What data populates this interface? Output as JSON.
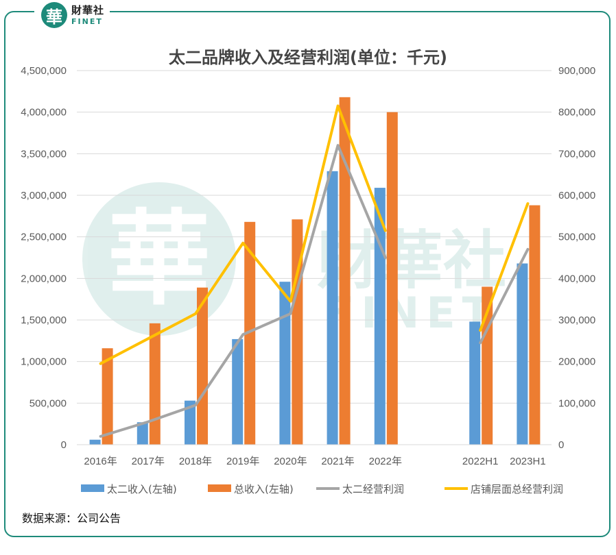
{
  "brand": {
    "badge_char": "華",
    "name_cn": "財華社",
    "name_en": "FINET"
  },
  "chart_data": {
    "type": "bar",
    "title": "太二品牌收入及经营利润(单位：千元)",
    "categories": [
      "2016年",
      "2017年",
      "2018年",
      "2019年",
      "2020年",
      "2021年",
      "2022年",
      "",
      "2022H1",
      "2023H1"
    ],
    "y_left": {
      "ylim": [
        0,
        4500000
      ],
      "ticks": [
        "0",
        "500,000",
        "1,000,000",
        "1,500,000",
        "2,000,000",
        "2,500,000",
        "3,000,000",
        "3,500,000",
        "4,000,000",
        "4,500,000"
      ]
    },
    "y_right": {
      "ylim": [
        0,
        900000
      ],
      "ticks": [
        "0",
        "100,000",
        "200,000",
        "300,000",
        "400,000",
        "500,000",
        "600,000",
        "700,000",
        "800,000",
        "900,000"
      ]
    },
    "grid": true,
    "legend_position": "bottom",
    "series": [
      {
        "name": "太二收入(左轴)",
        "type": "bar",
        "axis": "left",
        "color": "#5b9bd5",
        "values": [
          60000,
          270000,
          530000,
          1270000,
          1960000,
          3290000,
          3090000,
          null,
          1480000,
          2180000
        ]
      },
      {
        "name": "总收入(左轴)",
        "type": "bar",
        "axis": "left",
        "color": "#ed7d31",
        "values": [
          1160000,
          1460000,
          1890000,
          2680000,
          2710000,
          4180000,
          4000000,
          null,
          1900000,
          2880000
        ]
      },
      {
        "name": "太二经营利润",
        "type": "line",
        "axis": "right",
        "color": "#a5a5a5",
        "values": [
          20000,
          55000,
          95000,
          265000,
          315000,
          720000,
          450000,
          null,
          245000,
          470000
        ]
      },
      {
        "name": "店铺层面总经营利润",
        "type": "line",
        "axis": "right",
        "color": "#ffc000",
        "values": [
          195000,
          255000,
          315000,
          485000,
          345000,
          815000,
          515000,
          null,
          275000,
          580000
        ]
      }
    ]
  },
  "source_note": "数据来源：公司公告",
  "watermark": {
    "char": "華",
    "cn": "財華社",
    "en": "FINET"
  }
}
